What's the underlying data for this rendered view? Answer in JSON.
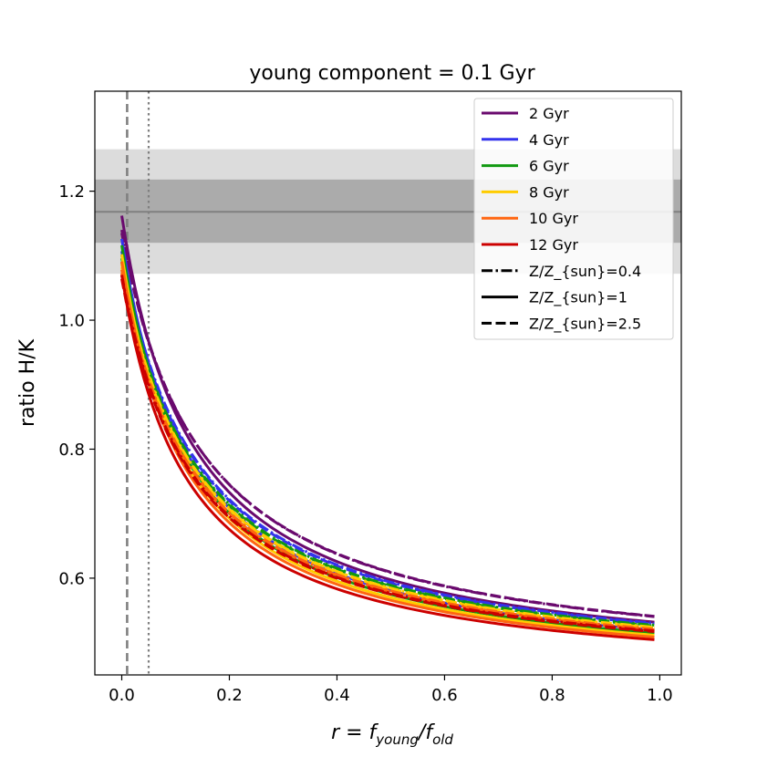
{
  "chart_data": {
    "type": "line",
    "title": "young component = 0.1 Gyr",
    "xlabel_parts": {
      "r": "r",
      "eq": "=",
      "f1": "f",
      "young": "young",
      "slash": "/",
      "f2": "f",
      "old": "old"
    },
    "ylabel": "ratio H/K",
    "xlim": [
      -0.05,
      1.04
    ],
    "ylim": [
      0.45,
      1.355
    ],
    "xticks": [
      0.0,
      0.2,
      0.4,
      0.6,
      0.8,
      1.0
    ],
    "xtick_labels": [
      "0.0",
      "0.2",
      "0.4",
      "0.6",
      "0.8",
      "1.0"
    ],
    "yticks": [
      0.6,
      0.8,
      1.0,
      1.2
    ],
    "ytick_labels": [
      "0.6",
      "0.8",
      "1.0",
      "1.2"
    ],
    "bands": [
      {
        "name": "outer band",
        "y0": 1.072,
        "y1": 1.265,
        "color": "#dcdcdc"
      },
      {
        "name": "inner band",
        "y0": 1.12,
        "y1": 1.218,
        "color": "#ababab"
      }
    ],
    "hline": {
      "y": 1.168,
      "color": "#808080"
    },
    "vlines": [
      {
        "x": 0.01,
        "style": "dashed",
        "color": "#808080"
      },
      {
        "x": 0.05,
        "style": "dotted",
        "color": "#808080"
      }
    ],
    "model": "y = a + b / (1 + c*x)",
    "x_range": [
      0.0,
      0.99
    ],
    "series": [
      {
        "name": "2 Gyr",
        "color": "#6a0a6e",
        "metallicity": "Z/Z_{sun}=0.4",
        "style": "dashdot",
        "a": 0.45,
        "b": 0.69,
        "c": 6.7
      },
      {
        "name": "2 Gyr",
        "color": "#6a0a6e",
        "metallicity": "Z/Z_{sun}=1",
        "style": "solid",
        "a": 0.447,
        "b": 0.715,
        "c": 7.5
      },
      {
        "name": "2 Gyr",
        "color": "#6a0a6e",
        "metallicity": "Z/Z_{sun}=2.5",
        "style": "dashed",
        "a": 0.45,
        "b": 0.685,
        "c": 6.6
      },
      {
        "name": "4 Gyr",
        "color": "#3333ee",
        "metallicity": "Z/Z_{sun}=0.4",
        "style": "dashdot",
        "a": 0.447,
        "b": 0.66,
        "c": 7.0
      },
      {
        "name": "4 Gyr",
        "color": "#3333ee",
        "metallicity": "Z/Z_{sun}=1",
        "style": "solid",
        "a": 0.441,
        "b": 0.685,
        "c": 7.8
      },
      {
        "name": "4 Gyr",
        "color": "#3333ee",
        "metallicity": "Z/Z_{sun}=2.5",
        "style": "dashed",
        "a": 0.446,
        "b": 0.655,
        "c": 6.95
      },
      {
        "name": "6 Gyr",
        "color": "#119911",
        "metallicity": "Z/Z_{sun}=0.4",
        "style": "dashdot",
        "a": 0.446,
        "b": 0.65,
        "c": 7.1
      },
      {
        "name": "6 Gyr",
        "color": "#119911",
        "metallicity": "Z/Z_{sun}=1",
        "style": "solid",
        "a": 0.438,
        "b": 0.678,
        "c": 7.9
      },
      {
        "name": "6 Gyr",
        "color": "#119911",
        "metallicity": "Z/Z_{sun}=2.5",
        "style": "dashed",
        "a": 0.445,
        "b": 0.645,
        "c": 7.05
      },
      {
        "name": "8 Gyr",
        "color": "#ffcc00",
        "metallicity": "Z/Z_{sun}=0.4",
        "style": "dashdot",
        "a": 0.445,
        "b": 0.642,
        "c": 7.2
      },
      {
        "name": "8 Gyr",
        "color": "#ffcc00",
        "metallicity": "Z/Z_{sun}=1",
        "style": "solid",
        "a": 0.437,
        "b": 0.665,
        "c": 8.0
      },
      {
        "name": "8 Gyr",
        "color": "#ffcc00",
        "metallicity": "Z/Z_{sun}=2.5",
        "style": "dashed",
        "a": 0.444,
        "b": 0.638,
        "c": 7.15
      },
      {
        "name": "10 Gyr",
        "color": "#ff6611",
        "metallicity": "Z/Z_{sun}=0.4",
        "style": "dashdot",
        "a": 0.444,
        "b": 0.634,
        "c": 7.3
      },
      {
        "name": "10 Gyr",
        "color": "#ff6611",
        "metallicity": "Z/Z_{sun}=1",
        "style": "solid",
        "a": 0.436,
        "b": 0.655,
        "c": 8.1
      },
      {
        "name": "10 Gyr",
        "color": "#ff6611",
        "metallicity": "Z/Z_{sun}=2.5",
        "style": "dashed",
        "a": 0.443,
        "b": 0.63,
        "c": 7.25
      },
      {
        "name": "12 Gyr",
        "color": "#cc0000",
        "metallicity": "Z/Z_{sun}=0.4",
        "style": "dashdot",
        "a": 0.443,
        "b": 0.627,
        "c": 7.4
      },
      {
        "name": "12 Gyr",
        "color": "#cc0000",
        "metallicity": "Z/Z_{sun}=1",
        "style": "solid",
        "a": 0.435,
        "b": 0.635,
        "c": 8.2
      },
      {
        "name": "12 Gyr",
        "color": "#cc0000",
        "metallicity": "Z/Z_{sun}=2.5",
        "style": "dashed",
        "a": 0.442,
        "b": 0.622,
        "c": 7.35
      }
    ],
    "legend": {
      "placement": "top-right",
      "entries": [
        {
          "label": "2 Gyr",
          "color": "#6a0a6e",
          "style": "solid"
        },
        {
          "label": "4 Gyr",
          "color": "#3333ee",
          "style": "solid"
        },
        {
          "label": "6 Gyr",
          "color": "#119911",
          "style": "solid"
        },
        {
          "label": "8 Gyr",
          "color": "#ffcc00",
          "style": "solid"
        },
        {
          "label": "10 Gyr",
          "color": "#ff6611",
          "style": "solid"
        },
        {
          "label": "12 Gyr",
          "color": "#cc0000",
          "style": "solid"
        },
        {
          "label": "Z/Z_{sun}=0.4",
          "color": "#000000",
          "style": "dashdot"
        },
        {
          "label": "Z/Z_{sun}=1",
          "color": "#000000",
          "style": "solid"
        },
        {
          "label": "Z/Z_{sun}=2.5",
          "color": "#000000",
          "style": "dashed"
        }
      ]
    }
  }
}
